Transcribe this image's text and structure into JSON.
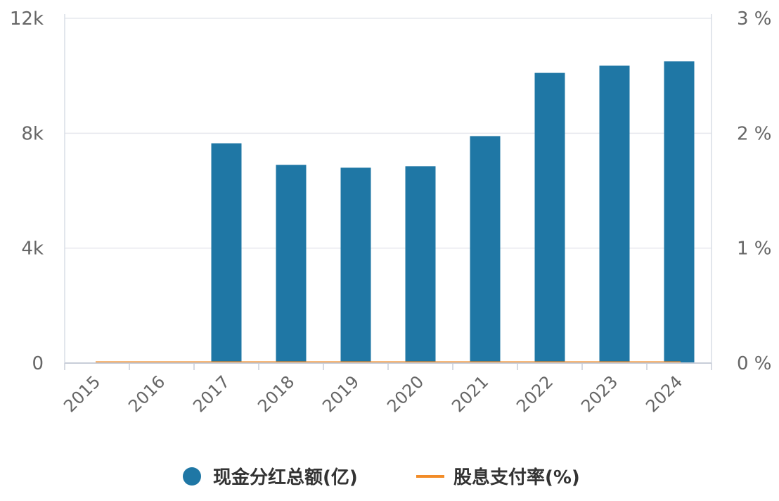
{
  "chart_data": {
    "type": "bar",
    "categories": [
      "2015",
      "2016",
      "2017",
      "2018",
      "2019",
      "2020",
      "2021",
      "2022",
      "2023",
      "2024"
    ],
    "series": [
      {
        "name": "现金分红总额(亿)",
        "type": "bar",
        "axis": "left",
        "color": "#1f77a5",
        "values": [
          0,
          0,
          7650,
          6900,
          6800,
          6850,
          7900,
          10100,
          10350,
          10500
        ]
      },
      {
        "name": "股息支付率(%)",
        "type": "line",
        "axis": "right",
        "color": "#f28c28",
        "values": [
          0,
          0,
          0,
          0,
          0,
          0,
          0,
          0,
          0,
          0
        ]
      }
    ],
    "y_left": {
      "ylim": [
        0,
        12000
      ],
      "ticks": [
        0,
        4000,
        8000,
        12000
      ],
      "tick_labels": [
        "0",
        "4k",
        "8k",
        "12k"
      ]
    },
    "y_right": {
      "ylim": [
        0,
        3
      ],
      "ticks": [
        0,
        1,
        2,
        3
      ],
      "tick_labels": [
        "0 %",
        "1 %",
        "2 %",
        "3 %"
      ]
    },
    "grid": true,
    "legend_position": "bottom"
  }
}
